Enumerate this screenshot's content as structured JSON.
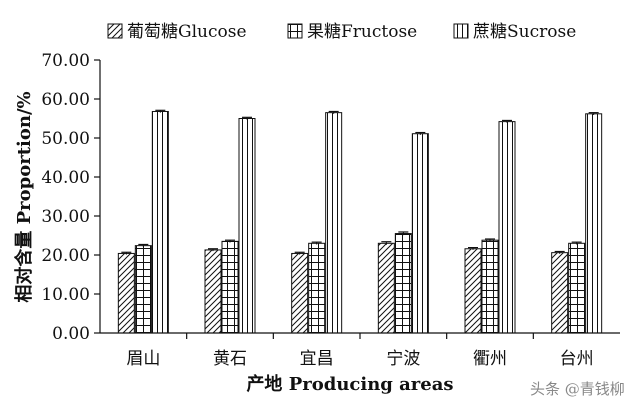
{
  "chart_data": {
    "type": "bar",
    "categories": [
      "眉山",
      "黄石",
      "宜昌",
      "宁波",
      "衢州",
      "台州"
    ],
    "series": [
      {
        "name": "葡萄糖Glucose",
        "values": [
          20.4,
          21.3,
          20.4,
          23.0,
          21.6,
          20.6
        ],
        "errors": [
          0.3,
          0.3,
          0.3,
          0.4,
          0.3,
          0.3
        ],
        "pattern": "diagonal"
      },
      {
        "name": "果糖Fructose",
        "values": [
          22.4,
          23.5,
          23.0,
          25.5,
          23.8,
          23.0
        ],
        "errors": [
          0.3,
          0.3,
          0.3,
          0.4,
          0.3,
          0.3
        ],
        "pattern": "grid"
      },
      {
        "name": "蔗糖Sucrose",
        "values": [
          56.8,
          55.0,
          56.5,
          51.1,
          54.2,
          56.2
        ],
        "errors": [
          0.3,
          0.3,
          0.3,
          0.3,
          0.3,
          0.3
        ],
        "pattern": "vertical"
      }
    ],
    "ylim": [
      0,
      70
    ],
    "yticks": [
      "0.00",
      "10.00",
      "20.00",
      "30.00",
      "40.00",
      "50.00",
      "60.00",
      "70.00"
    ],
    "ytick_values": [
      0,
      10,
      20,
      30,
      40,
      50,
      60,
      70
    ],
    "xlabel": "产地 Producing areas",
    "ylabel": "相对含量 Proportion/%",
    "legend_position": "top",
    "grid": false,
    "bar_fill": "#ffffff",
    "stroke_color": "#111111"
  },
  "watermark": "头条 @青钱柳"
}
